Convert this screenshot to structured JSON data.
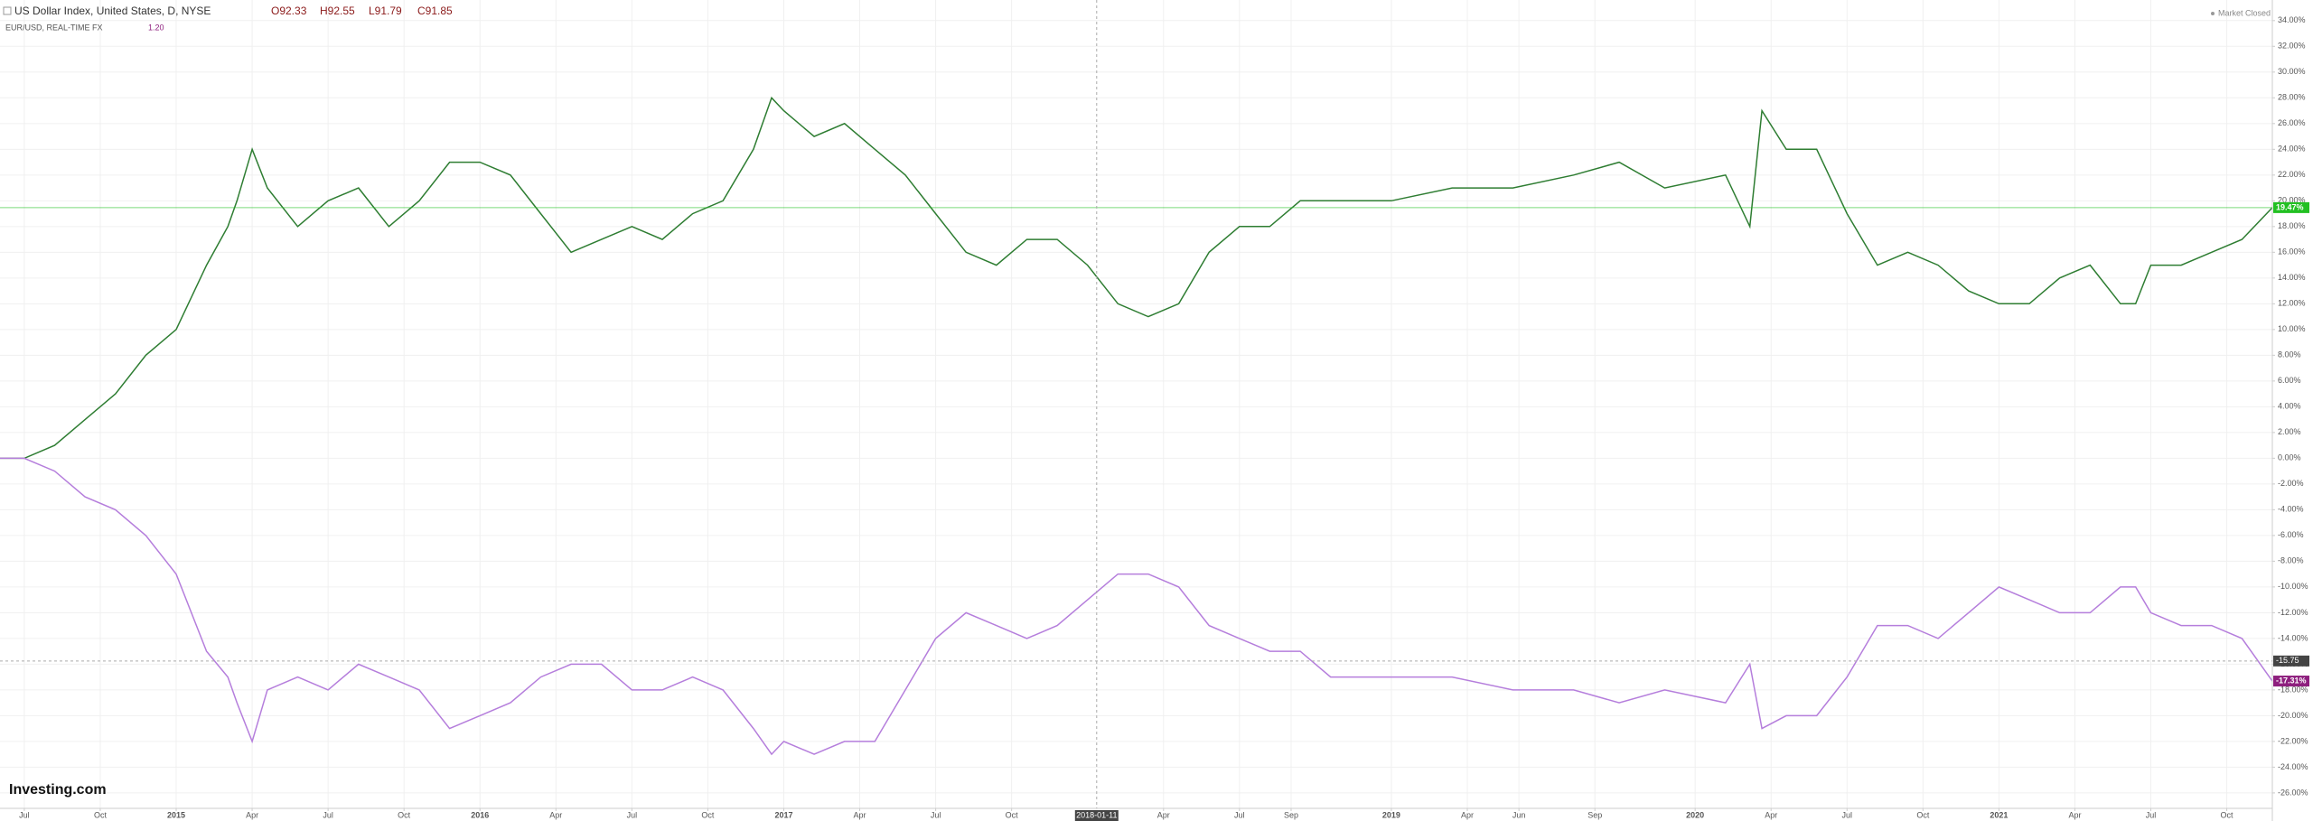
{
  "chart_data": {
    "type": "line",
    "series": [
      {
        "name": "US Dollar Index, United States, D, NYSE",
        "color": "#2e7d32",
        "values": [
          0,
          0,
          1,
          3,
          5,
          8,
          10,
          15,
          18,
          20,
          24,
          21,
          18,
          20,
          21,
          18,
          20,
          23,
          23,
          22,
          19,
          16,
          17,
          18,
          17,
          19,
          20,
          24,
          28,
          27,
          25,
          26,
          24,
          22,
          19,
          16,
          15,
          17,
          17,
          15,
          12,
          11,
          12,
          16,
          18,
          18,
          20,
          20,
          20,
          20,
          21,
          21,
          22,
          23,
          21,
          22,
          18,
          27,
          24,
          24,
          19,
          15,
          16,
          15,
          13,
          12,
          12,
          14,
          15,
          12,
          12,
          15,
          15,
          16,
          17,
          19.47
        ]
      },
      {
        "name": "EUR/USD, REAL-TIME FX",
        "color": "#b57edc",
        "values": [
          0,
          0,
          -1,
          -3,
          -4,
          -6,
          -9,
          -15,
          -17,
          -19,
          -22,
          -18,
          -17,
          -18,
          -16,
          -17,
          -18,
          -21,
          -20,
          -19,
          -17,
          -16,
          -16,
          -18,
          -18,
          -17,
          -18,
          -21,
          -23,
          -22,
          -23,
          -22,
          -22,
          -18,
          -14,
          -12,
          -13,
          -14,
          -13,
          -11,
          -9,
          -9,
          -10,
          -13,
          -14,
          -15,
          -15,
          -17,
          -17,
          -17,
          -17,
          -18,
          -18,
          -19,
          -18,
          -19,
          -16,
          -21,
          -20,
          -20,
          -17,
          -13,
          -13,
          -14,
          -12,
          -10,
          -11,
          -12,
          -12,
          -10,
          -10,
          -12,
          -13,
          -13,
          -14,
          -17.31
        ]
      }
    ],
    "x": [
      2014.42,
      2014.5,
      2014.6,
      2014.7,
      2014.8,
      2014.9,
      2015.0,
      2015.1,
      2015.17,
      2015.2,
      2015.25,
      2015.3,
      2015.4,
      2015.5,
      2015.6,
      2015.7,
      2015.8,
      2015.9,
      2016.0,
      2016.1,
      2016.2,
      2016.3,
      2016.4,
      2016.5,
      2016.6,
      2016.7,
      2016.8,
      2016.9,
      2016.96,
      2017.0,
      2017.1,
      2017.2,
      2017.3,
      2017.4,
      2017.5,
      2017.6,
      2017.7,
      2017.8,
      2017.9,
      2018.0,
      2018.1,
      2018.2,
      2018.3,
      2018.4,
      2018.5,
      2018.6,
      2018.7,
      2018.8,
      2018.9,
      2019.0,
      2019.2,
      2019.4,
      2019.6,
      2019.75,
      2019.9,
      2020.1,
      2020.18,
      2020.22,
      2020.3,
      2020.4,
      2020.5,
      2020.6,
      2020.7,
      2020.8,
      2020.9,
      2021.0,
      2021.1,
      2021.2,
      2021.3,
      2021.4,
      2021.45,
      2021.5,
      2021.6,
      2021.7,
      2021.8,
      2021.9
    ],
    "ohlc": [
      {
        "value": 92.33,
        "label": "O92.33"
      },
      {
        "value": 92.55,
        "label": "H92.55"
      },
      {
        "value": 91.79,
        "label": "L91.79"
      },
      {
        "value": 91.85,
        "label": "C91.85"
      }
    ],
    "second_value": {
      "value": 1.2,
      "label": "1.20"
    },
    "status": "Market Closed",
    "logo": "Investing.com",
    "last_labels": [
      {
        "value": 19.47,
        "label": "19.47%",
        "color": "#22c022"
      },
      {
        "value": -17.31,
        "label": "-17.31%",
        "color": "#8e1f7e"
      }
    ],
    "crosshair": {
      "x": {
        "value": 2018.03,
        "label": "2018-01-11"
      },
      "y": {
        "value": -15.75,
        "label": "-15.75"
      }
    },
    "xlim": [
      2014.42,
      2021.9
    ],
    "ylim": [
      -27.2,
      35.6
    ],
    "xticks": [
      {
        "value": 2014.5,
        "label": "Jul"
      },
      {
        "value": 2014.75,
        "label": "Oct"
      },
      2015,
      {
        "value": 2015.25,
        "label": "Apr"
      },
      {
        "value": 2015.5,
        "label": "Jul"
      },
      {
        "value": 2015.75,
        "label": "Oct"
      },
      2016,
      {
        "value": 2016.25,
        "label": "Apr"
      },
      {
        "value": 2016.5,
        "label": "Jul"
      },
      {
        "value": 2016.75,
        "label": "Oct"
      },
      2017,
      {
        "value": 2017.25,
        "label": "Apr"
      },
      {
        "value": 2017.5,
        "label": "Jul"
      },
      {
        "value": 2017.75,
        "label": "Oct"
      },
      {
        "value": 2018.25,
        "label": "Apr"
      },
      {
        "value": 2018.5,
        "label": "Jul"
      },
      {
        "value": 2018.67,
        "label": "Sep"
      },
      2019,
      {
        "value": 2019.25,
        "label": "Apr"
      },
      {
        "value": 2019.42,
        "label": "Jun"
      },
      {
        "value": 2019.67,
        "label": "Sep"
      },
      2020,
      {
        "value": 2020.25,
        "label": "Apr"
      },
      {
        "value": 2020.5,
        "label": "Jul"
      },
      {
        "value": 2020.75,
        "label": "Oct"
      },
      2021,
      {
        "value": 2021.25,
        "label": "Apr"
      },
      {
        "value": 2021.5,
        "label": "Jul"
      },
      {
        "value": 2021.75,
        "label": "Oct"
      }
    ],
    "yticks": [
      {
        "value": 34,
        "label": "34.00%"
      },
      {
        "value": 32,
        "label": "32.00%"
      },
      {
        "value": 30,
        "label": "30.00%"
      },
      {
        "value": 28,
        "label": "28.00%"
      },
      {
        "value": 26,
        "label": "26.00%"
      },
      {
        "value": 24,
        "label": "24.00%"
      },
      {
        "value": 22,
        "label": "22.00%"
      },
      {
        "value": 20,
        "label": "20.00%"
      },
      {
        "value": 18,
        "label": "18.00%"
      },
      {
        "value": 16,
        "label": "16.00%"
      },
      {
        "value": 14,
        "label": "14.00%"
      },
      {
        "value": 12,
        "label": "12.00%"
      },
      {
        "value": 10,
        "label": "10.00%"
      },
      {
        "value": 8,
        "label": "8.00%"
      },
      {
        "value": 6,
        "label": "6.00%"
      },
      {
        "value": 4,
        "label": "4.00%"
      },
      {
        "value": 2,
        "label": "2.00%"
      },
      {
        "value": 0,
        "label": "0.00%"
      },
      {
        "value": -2,
        "label": "-2.00%"
      },
      {
        "value": -4,
        "label": "-4.00%"
      },
      {
        "value": -6,
        "label": "-6.00%"
      },
      {
        "value": -8,
        "label": "-8.00%"
      },
      {
        "value": -10,
        "label": "-10.00%"
      },
      {
        "value": -12,
        "label": "-12.00%"
      },
      {
        "value": -14,
        "label": "-14.00%"
      },
      {
        "value": -16,
        "label": "-16.00%"
      },
      {
        "value": -18,
        "label": "-18.00%"
      },
      {
        "value": -20,
        "label": "-20.00%"
      },
      {
        "value": -22,
        "label": "-22.00%"
      },
      {
        "value": -24,
        "label": "-24.00%"
      },
      {
        "value": -26,
        "label": "-26.00%"
      }
    ],
    "grid": true
  }
}
